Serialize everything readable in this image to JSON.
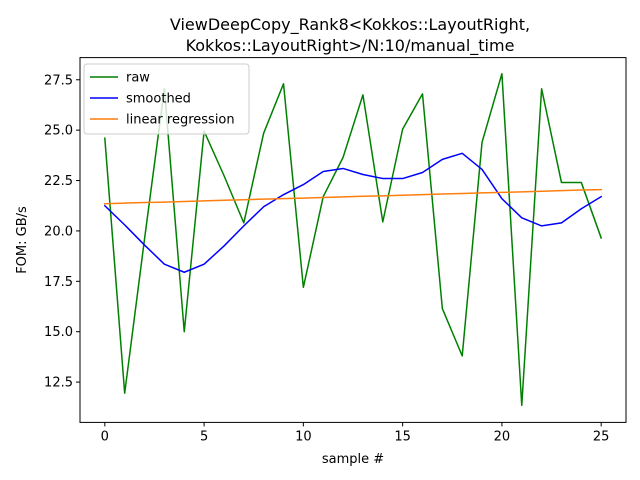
{
  "chart_data": {
    "type": "line",
    "title_lines": [
      "ViewDeepCopy_Rank8<Kokkos::LayoutRight,",
      "Kokkos::LayoutRight>/N:10/manual_time"
    ],
    "xlabel": "sample #",
    "ylabel": "FOM: GB/s",
    "xlim": [
      -1.25,
      26.25
    ],
    "ylim": [
      10.5,
      28.6
    ],
    "xticks": [
      0,
      5,
      10,
      15,
      20,
      25
    ],
    "xtick_labels": [
      "0",
      "5",
      "10",
      "15",
      "20",
      "25"
    ],
    "yticks": [
      12.5,
      15.0,
      17.5,
      20.0,
      22.5,
      25.0,
      27.5
    ],
    "ytick_labels": [
      "12.5",
      "15.0",
      "17.5",
      "20.0",
      "22.5",
      "25.0",
      "27.5"
    ],
    "grid": false,
    "legend_position": "top-left",
    "x": [
      0,
      1,
      2,
      3,
      4,
      5,
      6,
      7,
      8,
      9,
      10,
      11,
      12,
      13,
      14,
      15,
      16,
      17,
      18,
      19,
      20,
      21,
      22,
      23,
      24,
      25
    ],
    "series": [
      {
        "name": "raw",
        "color": "#008000",
        "values": [
          24.6,
          11.95,
          19.6,
          27.05,
          15.0,
          24.95,
          22.75,
          20.4,
          24.85,
          27.3,
          17.2,
          21.7,
          23.65,
          26.75,
          20.45,
          25.05,
          26.8,
          16.15,
          13.8,
          24.4,
          27.8,
          11.35,
          27.05,
          22.4,
          22.4,
          19.65
        ]
      },
      {
        "name": "smoothed",
        "color": "#0000ff",
        "values": [
          21.25,
          20.3,
          19.3,
          18.35,
          17.95,
          18.35,
          19.25,
          20.25,
          21.2,
          21.8,
          22.3,
          22.95,
          23.1,
          22.8,
          22.6,
          22.6,
          22.9,
          23.55,
          23.85,
          23.05,
          21.6,
          20.65,
          20.25,
          20.4,
          21.1,
          21.7
        ]
      },
      {
        "name": "linear regression",
        "color": "#ff7f0e",
        "values": [
          21.35,
          21.38,
          21.41,
          21.43,
          21.46,
          21.49,
          21.52,
          21.55,
          21.58,
          21.6,
          21.63,
          21.66,
          21.69,
          21.72,
          21.74,
          21.77,
          21.8,
          21.83,
          21.86,
          21.89,
          21.91,
          21.94,
          21.97,
          22.0,
          22.03,
          22.05
        ]
      }
    ]
  }
}
